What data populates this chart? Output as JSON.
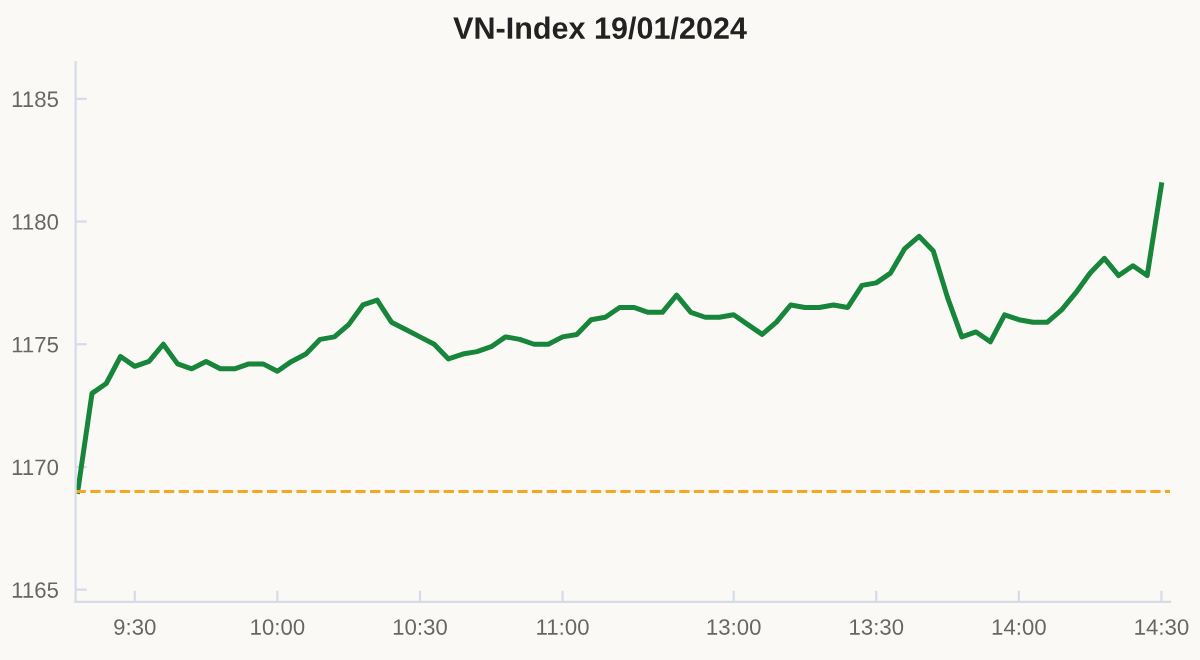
{
  "chart_data": {
    "type": "line",
    "title": "VN-Index 19/01/2024",
    "categories": [
      null,
      null,
      null,
      null,
      "9:30",
      null,
      null,
      null,
      null,
      null,
      null,
      null,
      null,
      null,
      "10:00",
      null,
      null,
      null,
      null,
      null,
      null,
      null,
      null,
      null,
      "10:30",
      null,
      null,
      null,
      null,
      null,
      null,
      null,
      null,
      null,
      "11:00",
      null,
      null,
      null,
      null,
      null,
      null,
      null,
      null,
      null,
      null,
      null,
      "13:00",
      null,
      null,
      null,
      null,
      null,
      null,
      null,
      null,
      null,
      "13:30",
      null,
      null,
      null,
      null,
      null,
      null,
      null,
      null,
      null,
      "14:00",
      null,
      null,
      null,
      null,
      null,
      null,
      null,
      null,
      null,
      "14:30"
    ],
    "series": [
      {
        "color": "#17853a",
        "values": [
          1169.0,
          1173.0,
          1173.4,
          1174.5,
          1174.1,
          1174.3,
          1175.0,
          1174.2,
          1174.0,
          1174.3,
          1174.0,
          1174.0,
          1174.2,
          1174.2,
          1173.9,
          1174.3,
          1174.6,
          1175.2,
          1175.3,
          1175.8,
          1176.6,
          1176.8,
          1175.9,
          1175.6,
          1175.3,
          1175.0,
          1174.4,
          1174.6,
          1174.7,
          1174.9,
          1175.3,
          1175.2,
          1175.0,
          1175.0,
          1175.3,
          1175.4,
          1176.0,
          1176.1,
          1176.5,
          1176.5,
          1176.3,
          1176.3,
          1177.0,
          1176.3,
          1176.1,
          1176.1,
          1176.2,
          1175.8,
          1175.4,
          1175.9,
          1176.6,
          1176.5,
          1176.5,
          1176.6,
          1176.5,
          1177.4,
          1177.5,
          1177.9,
          1178.9,
          1179.4,
          1178.8,
          1176.9,
          1175.3,
          1175.5,
          1175.1,
          1176.2,
          1176.0,
          1175.9,
          1175.9,
          1176.4,
          1177.1,
          1177.9,
          1178.5,
          1177.8,
          1178.2,
          1177.8,
          1181.5
        ]
      }
    ],
    "ylim": [
      1164.5,
      1186.5
    ],
    "yticks": [
      1165,
      1170,
      1175,
      1180,
      1185
    ],
    "ref_lines": [
      {
        "axis": "y",
        "value": 1169,
        "color": "#f5a623",
        "line_style": "dashed"
      }
    ],
    "grid": false,
    "legend": false,
    "marker": "none",
    "line_style": "solid"
  }
}
